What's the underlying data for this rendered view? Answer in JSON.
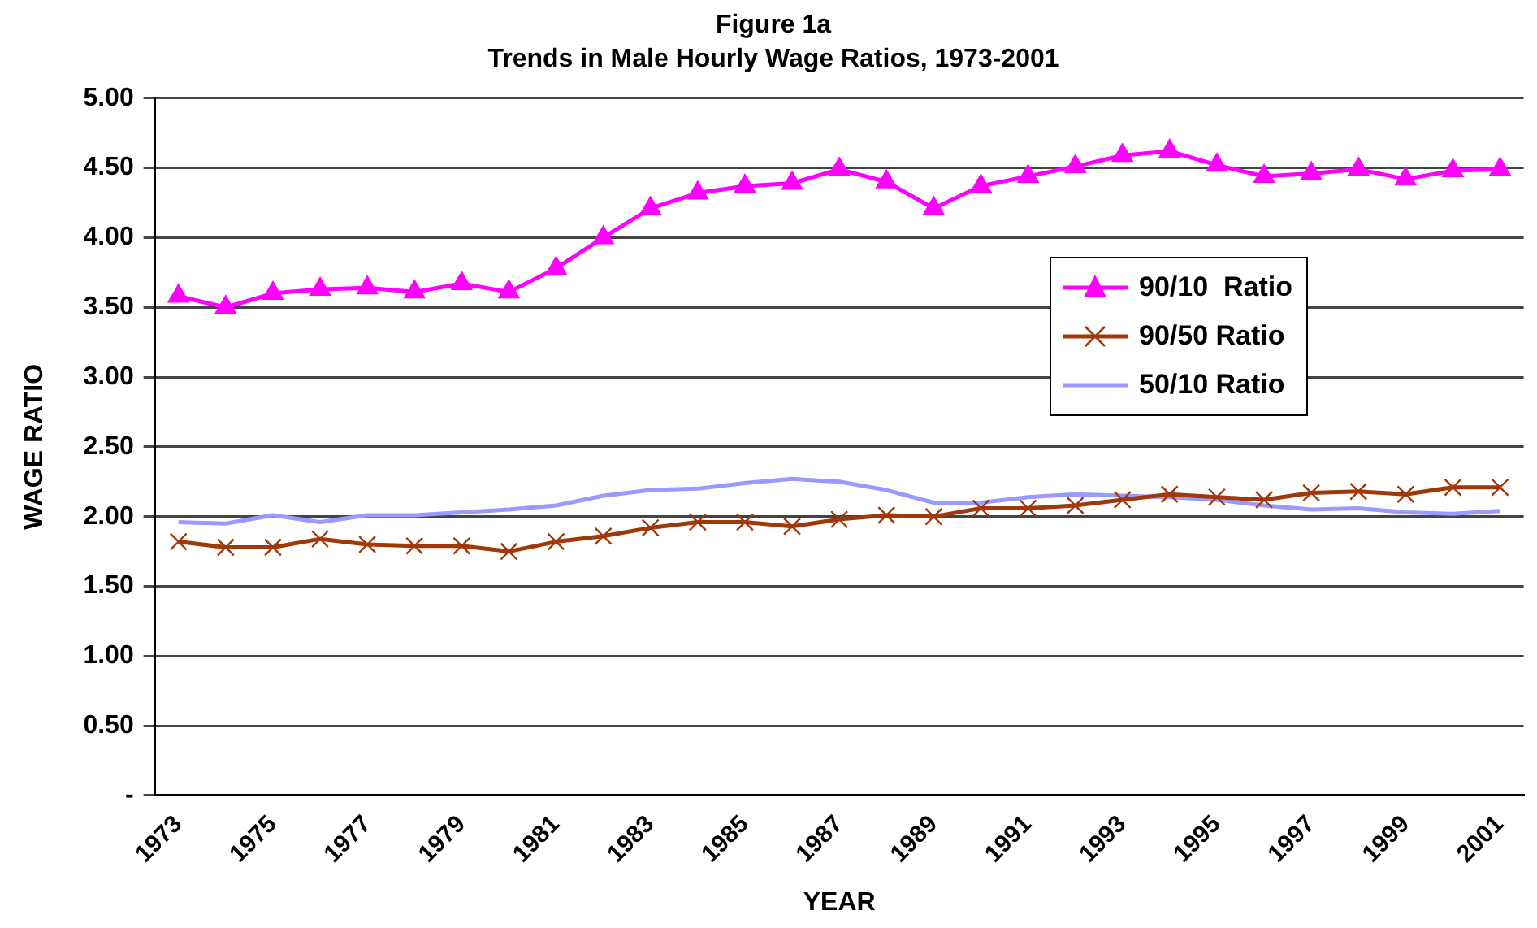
{
  "chart_data": {
    "type": "line",
    "title": "Figure 1a",
    "subtitle": "Trends in Male Hourly Wage Ratios, 1973-2001",
    "xlabel": "YEAR",
    "ylabel": "WAGE RATIO",
    "categories": [
      "1973",
      null,
      "1975",
      null,
      "1977",
      null,
      "1979",
      null,
      "1981",
      null,
      "1983",
      null,
      "1985",
      null,
      "1987",
      null,
      "1989",
      null,
      "1991",
      null,
      "1993",
      null,
      "1995",
      null,
      "1997",
      null,
      "1999",
      null,
      "2001"
    ],
    "series": [
      {
        "name": "90/10  Ratio",
        "color": "#ff00ff",
        "marker": "triangle",
        "values": [
          3.58,
          3.5,
          3.6,
          3.63,
          3.64,
          3.61,
          3.67,
          3.61,
          3.78,
          4.0,
          4.21,
          4.32,
          4.37,
          4.39,
          4.49,
          4.4,
          4.21,
          4.37,
          4.44,
          4.51,
          4.59,
          4.62,
          4.52,
          4.44,
          4.46,
          4.49,
          4.42,
          4.48,
          4.49
        ]
      },
      {
        "name": "90/50 Ratio",
        "color": "#a0380a",
        "marker": "cross",
        "values": [
          1.82,
          1.78,
          1.78,
          1.84,
          1.8,
          1.79,
          1.79,
          1.75,
          1.82,
          1.86,
          1.92,
          1.96,
          1.96,
          1.93,
          1.98,
          2.01,
          2.0,
          2.06,
          2.06,
          2.08,
          2.12,
          2.16,
          2.14,
          2.12,
          2.17,
          2.18,
          2.16,
          2.21,
          2.21
        ]
      },
      {
        "name": "50/10 Ratio",
        "color": "#9999ff",
        "marker": "none",
        "values": [
          1.96,
          1.95,
          2.01,
          1.96,
          2.01,
          2.01,
          2.03,
          2.05,
          2.08,
          2.15,
          2.19,
          2.2,
          2.24,
          2.27,
          2.25,
          2.19,
          2.1,
          2.1,
          2.14,
          2.16,
          2.15,
          2.14,
          2.12,
          2.08,
          2.05,
          2.06,
          2.03,
          2.02,
          2.04
        ]
      }
    ],
    "ylim": [
      0,
      5
    ],
    "yticks": [
      {
        "value": 0,
        "label": "-"
      },
      {
        "value": 0.5,
        "label": "0.50"
      },
      {
        "value": 1,
        "label": "1.00"
      },
      {
        "value": 1.5,
        "label": "1.50"
      },
      {
        "value": 2,
        "label": "2.00"
      },
      {
        "value": 2.5,
        "label": "2.50"
      },
      {
        "value": 3,
        "label": "3.00"
      },
      {
        "value": 3.5,
        "label": "3.50"
      },
      {
        "value": 4,
        "label": "4.00"
      },
      {
        "value": 4.5,
        "label": "4.50"
      },
      {
        "value": 5,
        "label": "5.00"
      }
    ],
    "grid": "y",
    "legend": "right",
    "line_style": "solid"
  }
}
